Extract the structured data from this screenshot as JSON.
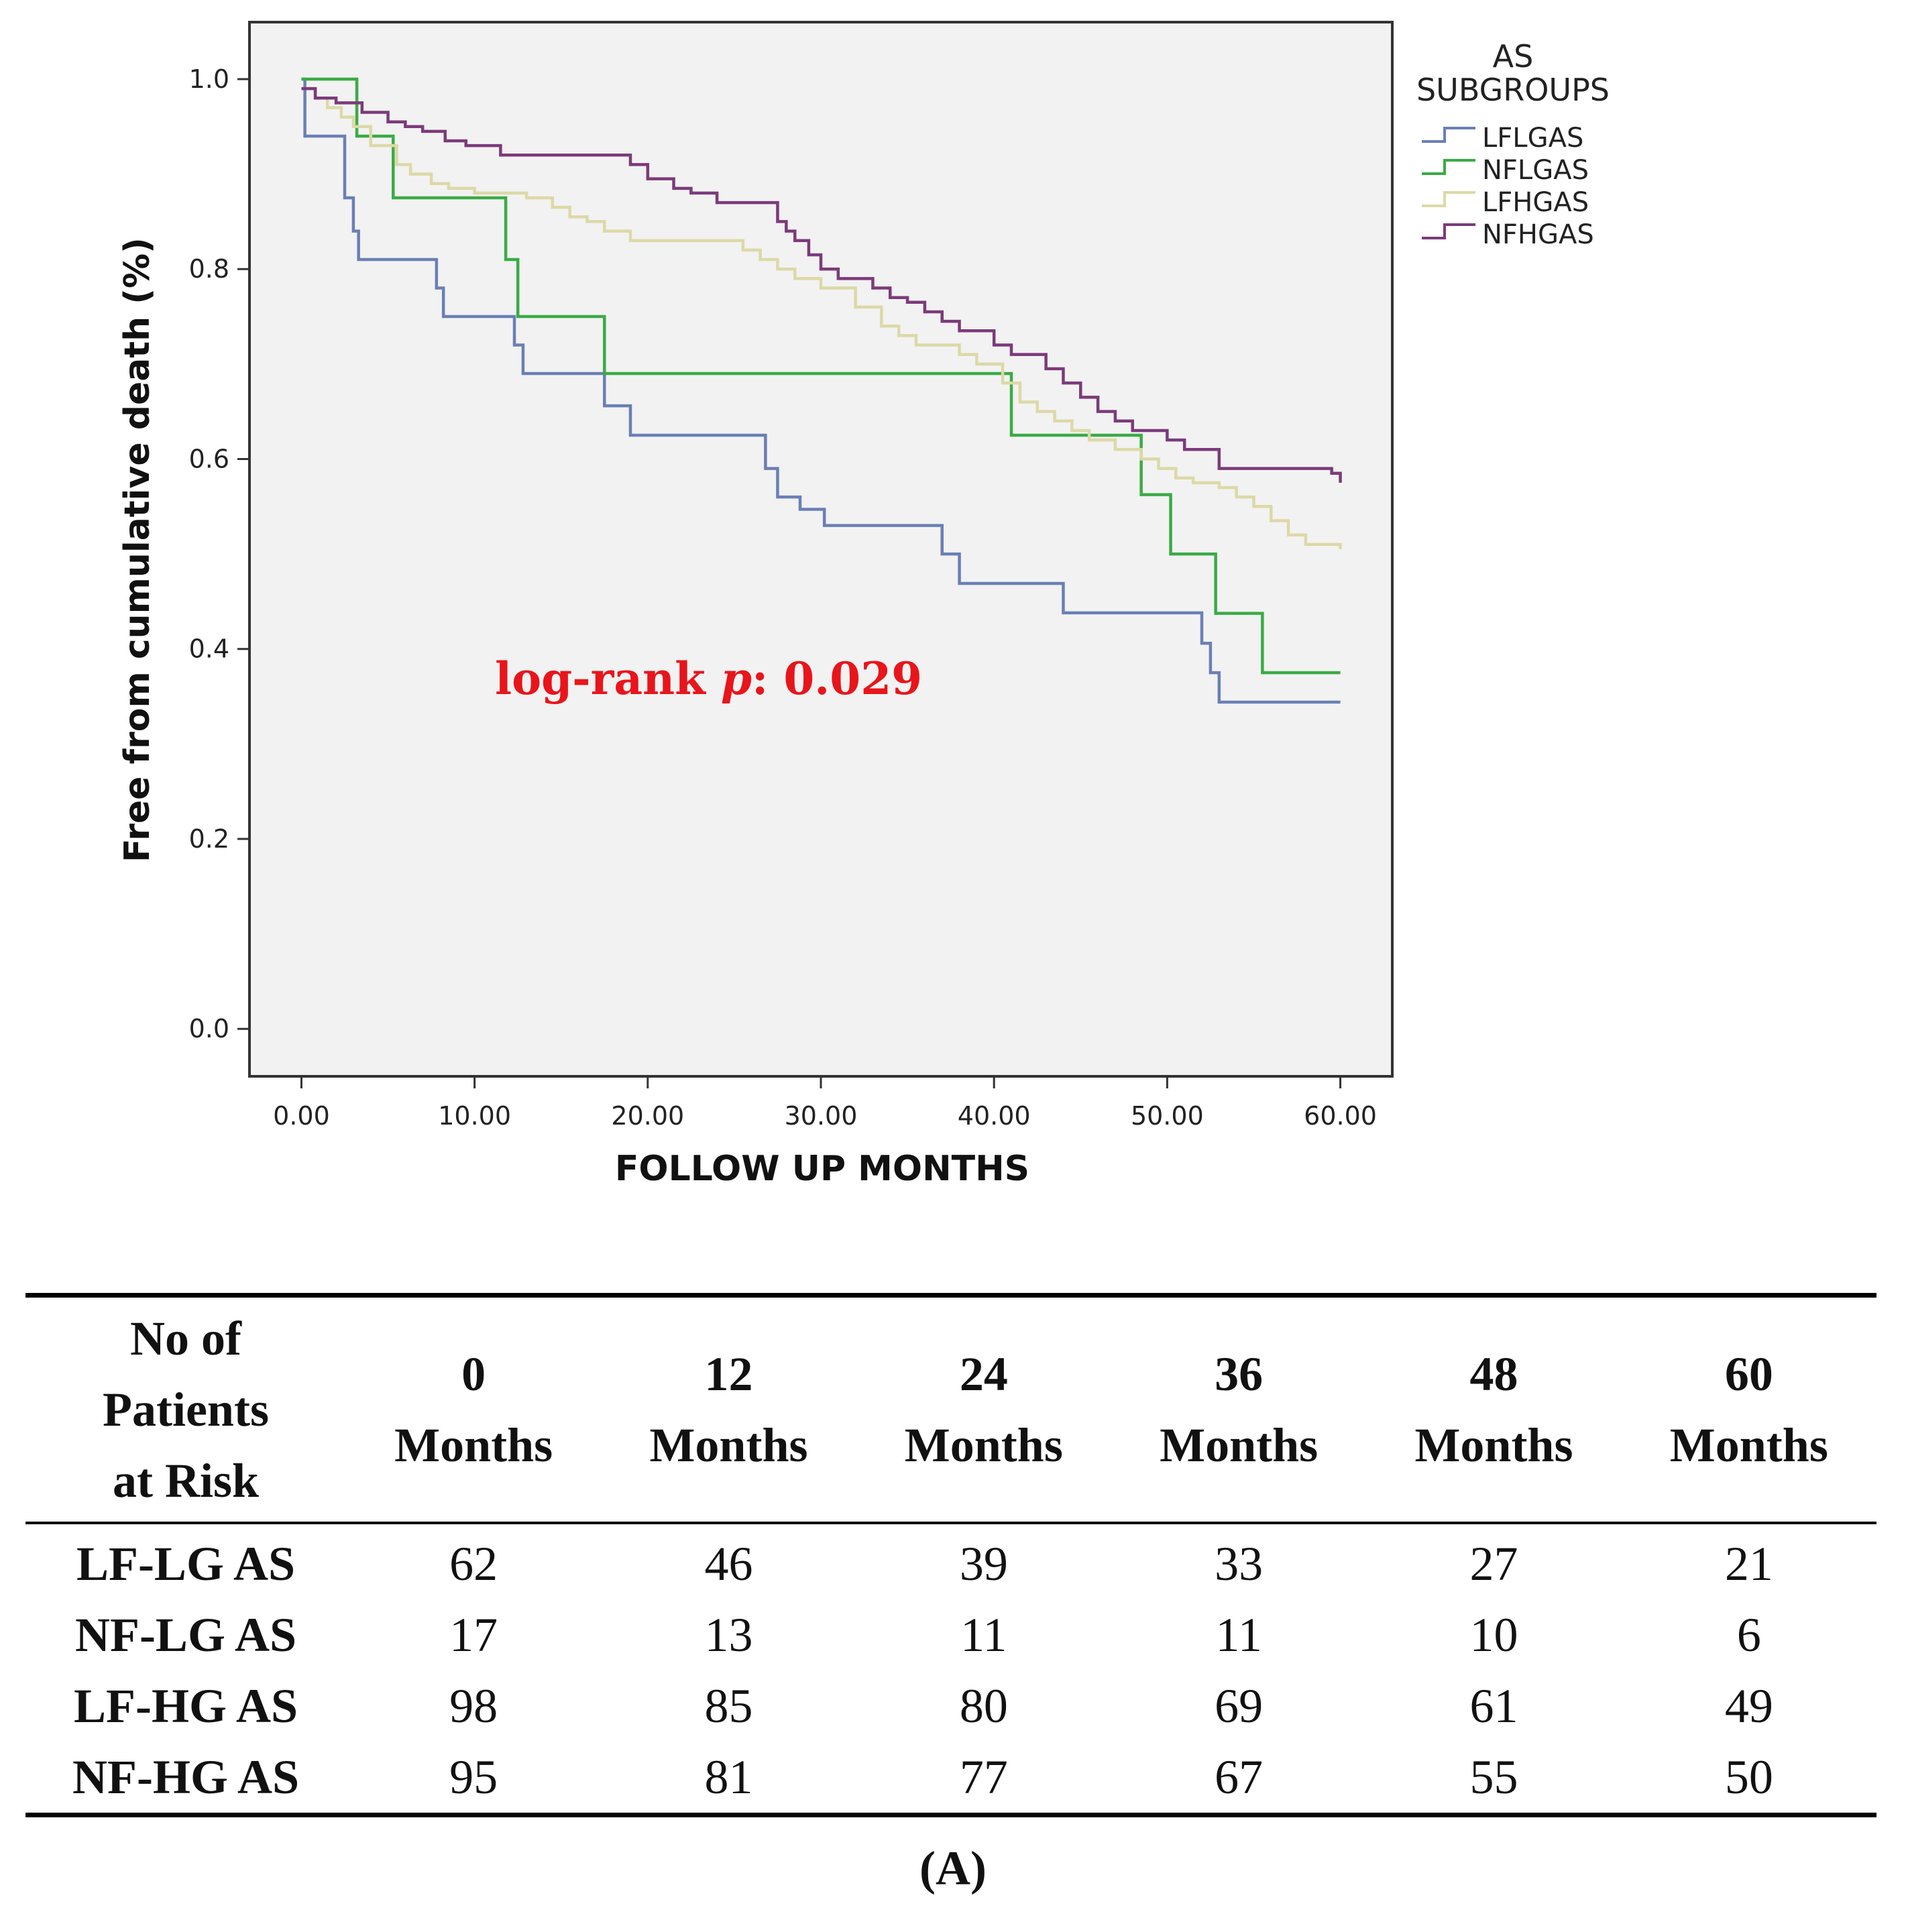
{
  "chart_data": {
    "type": "line",
    "step": true,
    "xlabel": "FOLLOW UP MONTHS",
    "ylabel": "Free from cumulative death (%)",
    "xlim": [
      -3,
      63
    ],
    "ylim": [
      -0.05,
      1.06
    ],
    "x_ticks": [
      0,
      10,
      20,
      30,
      40,
      50,
      60
    ],
    "x_tick_labels": [
      "0.00",
      "10.00",
      "20.00",
      "30.00",
      "40.00",
      "50.00",
      "60.00"
    ],
    "y_ticks": [
      0,
      0.2,
      0.4,
      0.6,
      0.8,
      1.0
    ],
    "y_tick_labels": [
      "0.0",
      "0.2",
      "0.4",
      "0.6",
      "0.8",
      "1.0"
    ],
    "grid": false,
    "plot_background": "#f2f2f2",
    "legend": {
      "title": [
        "AS",
        "SUBGROUPS"
      ],
      "position": "outside-right-top",
      "entries": [
        "LFLGAS",
        "NFLGAS",
        "LFHGAS",
        "NFHGAS"
      ]
    },
    "annotation": {
      "prefix": "log-rank ",
      "italic": "p",
      "suffix": ": 0.029"
    },
    "series": [
      {
        "name": "LFLGAS",
        "color": "#6a7fb5",
        "x": [
          0,
          0.2,
          2.5,
          3.0,
          3.3,
          4.0,
          7.8,
          8.2,
          12.3,
          12.8,
          17.5,
          19.0,
          26.8,
          27.5,
          28.8,
          30.2,
          37.0,
          38.0,
          44.0,
          52.0,
          52.5,
          53.0,
          60.0
        ],
        "y": [
          1.0,
          0.94,
          0.875,
          0.84,
          0.81,
          0.81,
          0.78,
          0.75,
          0.72,
          0.69,
          0.656,
          0.625,
          0.59,
          0.56,
          0.547,
          0.53,
          0.5,
          0.469,
          0.438,
          0.406,
          0.375,
          0.344,
          0.344
        ]
      },
      {
        "name": "NFLGAS",
        "color": "#3aab45",
        "x": [
          0,
          3.2,
          5.3,
          11.8,
          12.5,
          17.5,
          41.0,
          48.5,
          50.2,
          52.8,
          55.5,
          60.0
        ],
        "y": [
          1.0,
          0.94,
          0.875,
          0.81,
          0.75,
          0.69,
          0.625,
          0.5625,
          0.5,
          0.4375,
          0.375,
          0.375
        ]
      },
      {
        "name": "LFHGAS",
        "color": "#dcd9a7",
        "x": [
          0,
          0.8,
          1.5,
          2.3,
          3.0,
          4.0,
          5.5,
          6.3,
          7.5,
          8.5,
          10.0,
          13.0,
          14.5,
          15.5,
          16.5,
          17.5,
          19.0,
          25.5,
          26.5,
          27.5,
          28.5,
          30.0,
          32.0,
          33.5,
          34.5,
          35.5,
          38.0,
          39.0,
          40.5,
          41.5,
          42.5,
          43.5,
          44.5,
          45.5,
          47.0,
          48.5,
          49.5,
          50.5,
          51.5,
          53.0,
          54.0,
          55.0,
          56.0,
          57.0,
          58.0,
          60.0
        ],
        "y": [
          0.99,
          0.98,
          0.97,
          0.96,
          0.95,
          0.93,
          0.91,
          0.9,
          0.89,
          0.885,
          0.88,
          0.875,
          0.865,
          0.855,
          0.85,
          0.84,
          0.83,
          0.82,
          0.81,
          0.8,
          0.79,
          0.78,
          0.76,
          0.74,
          0.73,
          0.72,
          0.71,
          0.7,
          0.68,
          0.66,
          0.65,
          0.64,
          0.63,
          0.62,
          0.61,
          0.6,
          0.59,
          0.58,
          0.575,
          0.57,
          0.56,
          0.55,
          0.535,
          0.52,
          0.51,
          0.505
        ]
      },
      {
        "name": "NFHGAS",
        "color": "#7c3a7a",
        "x": [
          0,
          0.8,
          2.0,
          3.5,
          5.0,
          6.0,
          7.0,
          8.3,
          9.5,
          11.5,
          19.0,
          20.0,
          21.5,
          22.5,
          24.0,
          27.5,
          28.0,
          28.5,
          29.3,
          30.0,
          31.0,
          33.0,
          34.0,
          35.0,
          36.0,
          37.0,
          38.0,
          40.0,
          41.0,
          43.0,
          44.0,
          45.0,
          46.0,
          47.0,
          48.0,
          50.0,
          51.0,
          53.0,
          59.5,
          60.0
        ],
        "y": [
          0.99,
          0.98,
          0.975,
          0.965,
          0.955,
          0.95,
          0.945,
          0.935,
          0.93,
          0.92,
          0.91,
          0.895,
          0.885,
          0.88,
          0.87,
          0.85,
          0.84,
          0.83,
          0.815,
          0.8,
          0.79,
          0.78,
          0.77,
          0.765,
          0.755,
          0.745,
          0.735,
          0.72,
          0.71,
          0.695,
          0.68,
          0.665,
          0.65,
          0.64,
          0.63,
          0.62,
          0.61,
          0.59,
          0.585,
          0.575
        ]
      }
    ]
  },
  "risk_table": {
    "corner_header": [
      "No of",
      "Patients",
      "at Risk"
    ],
    "columns": [
      {
        "value": "0",
        "unit": "Months"
      },
      {
        "value": "12",
        "unit": "Months"
      },
      {
        "value": "24",
        "unit": "Months"
      },
      {
        "value": "36",
        "unit": "Months"
      },
      {
        "value": "48",
        "unit": "Months"
      },
      {
        "value": "60",
        "unit": "Months"
      }
    ],
    "rows": [
      {
        "label": "LF-LG AS",
        "values": [
          "62",
          "46",
          "39",
          "33",
          "27",
          "21"
        ]
      },
      {
        "label": "NF-LG AS",
        "values": [
          "17",
          "13",
          "11",
          "11",
          "10",
          "6"
        ]
      },
      {
        "label": "LF-HG AS",
        "values": [
          "98",
          "85",
          "80",
          "69",
          "61",
          "49"
        ]
      },
      {
        "label": "NF-HG AS",
        "values": [
          "95",
          "81",
          "77",
          "67",
          "55",
          "50"
        ]
      }
    ]
  },
  "panel_label": "(A)"
}
